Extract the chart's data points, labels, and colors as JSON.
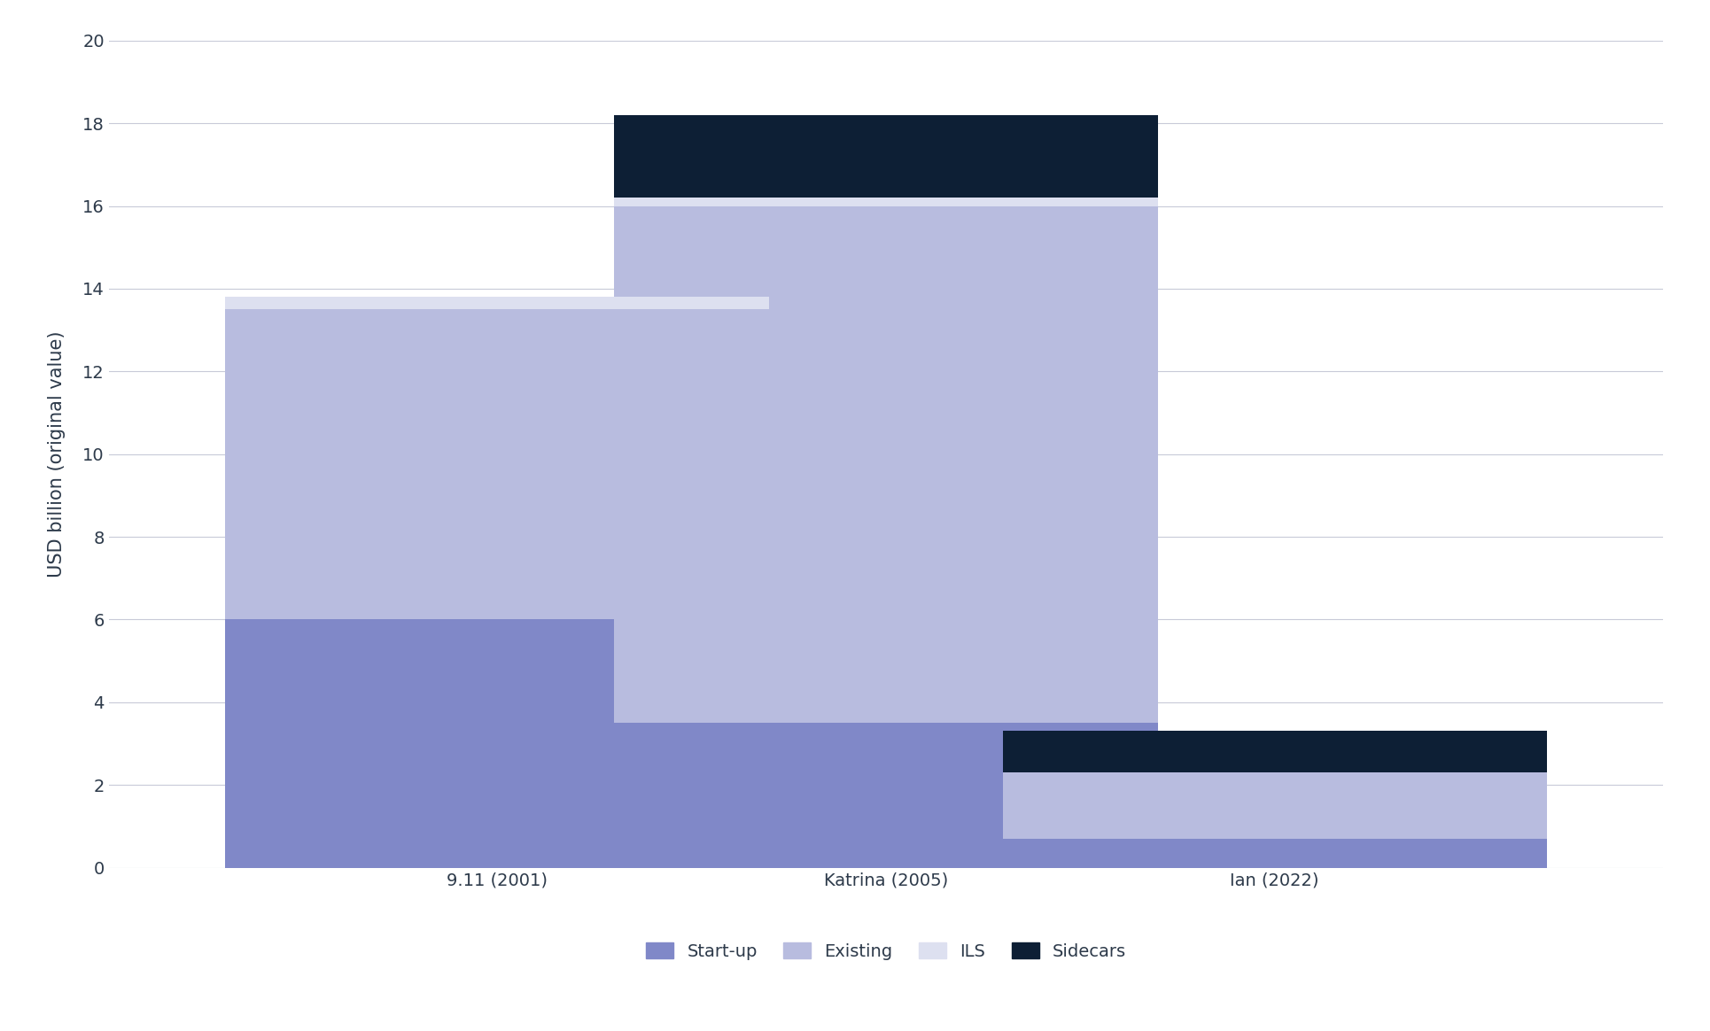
{
  "categories": [
    "9.11 (2001)",
    "Katrina (2005)",
    "Ian (2022)"
  ],
  "startup": [
    6.0,
    3.5,
    0.7
  ],
  "existing": [
    7.5,
    12.5,
    1.6
  ],
  "ils": [
    0.3,
    0.2,
    0.0
  ],
  "sidecars": [
    0.0,
    2.0,
    1.0
  ],
  "color_startup": "#8088c8",
  "color_existing": "#b8bcdf",
  "color_ils": "#dde0f0",
  "color_sidecars": "#0d1f35",
  "ylabel": "USD billion (original value)",
  "ylim": [
    0,
    20
  ],
  "yticks": [
    0,
    2,
    4,
    6,
    8,
    10,
    12,
    14,
    16,
    18,
    20
  ],
  "legend_labels": [
    "Start-up",
    "Existing",
    "ILS",
    "Sidecars"
  ],
  "background_color": "#ffffff",
  "bar_width": 0.35,
  "label_fontsize": 15,
  "tick_fontsize": 14,
  "legend_fontsize": 14
}
